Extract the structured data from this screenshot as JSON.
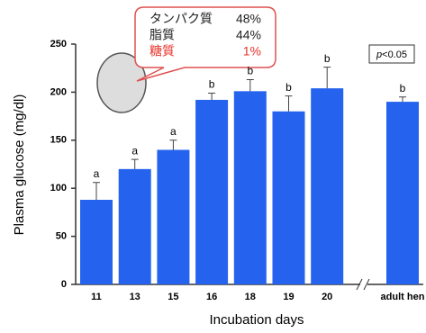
{
  "chart_data": {
    "type": "bar",
    "x_label": "Incubation days",
    "y_label": "Plasma glucose (mg/dl)",
    "categories": [
      "11",
      "13",
      "15",
      "16",
      "18",
      "19",
      "20",
      "adult hen"
    ],
    "values": [
      88,
      120,
      140,
      192,
      201,
      180,
      204,
      190
    ],
    "errors": [
      18,
      10,
      10,
      7,
      12,
      16,
      22,
      5
    ],
    "significance": [
      "a",
      "a",
      "a",
      "b",
      "b",
      "b",
      "b",
      "b"
    ],
    "color": "#2563ee",
    "ylim": [
      0,
      250
    ],
    "yticks": [
      0,
      50,
      100,
      150,
      200,
      250
    ],
    "p_note": {
      "italic": "p",
      "rest": "<0.05"
    },
    "callout": [
      {
        "label": "タンパク質",
        "value": "48%"
      },
      {
        "label": "脂質",
        "value": "44%"
      },
      {
        "label": "糖質",
        "value": "1%",
        "color": "#e8332a"
      }
    ]
  }
}
